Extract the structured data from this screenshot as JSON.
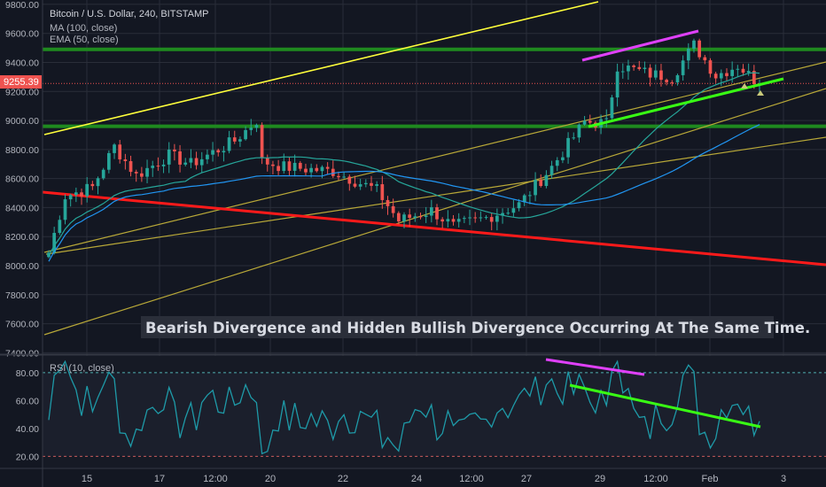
{
  "legend": {
    "symbol": "Bitcoin / U.S. Dollar, 240, BITSTAMP",
    "line2": "MA (100, close)",
    "line3": "EMA (50, close)"
  },
  "price_badge": "9255.39",
  "annotation": "Bearish Divergence and Hidden Bullish Divergence Occurring At The Same Time.",
  "rsi_label": "RSI (10, close)",
  "colors": {
    "background": "#131722",
    "grid": "#2a2e39",
    "bull": "#26a69a",
    "bear": "#ef5350",
    "ma": "#2196f3",
    "ema": "#26a69a",
    "channel": "#b8a838",
    "upper_line": "#ffff3b",
    "resistance": "#ff1a1a",
    "hzone": "#1f8a1f",
    "magenta": "#e040fb",
    "lime": "#39ff14",
    "rsi": "#1e9aa8",
    "text": "#b2b5be"
  },
  "chart_data": [
    {
      "type": "candlestick",
      "title": "Bitcoin / U.S. Dollar, 240, BITSTAMP",
      "x_ticks": [
        "15",
        "17",
        "12:00",
        "20",
        "22",
        "24",
        "12:00",
        "27",
        "29",
        "12:00",
        "Feb",
        "3"
      ],
      "y_ticks": [
        7400,
        7600,
        7800,
        8000,
        8200,
        8400,
        8600,
        8800,
        9000,
        9200,
        9400,
        9600,
        9800
      ],
      "ylim": [
        7390,
        9830
      ],
      "last_price": 9255.39,
      "horizontal_levels": [
        9490,
        8960
      ],
      "series_names": [
        "MA (100, close)",
        "EMA (50, close)"
      ],
      "anchors": [
        {
          "i": 0,
          "p": 8090
        },
        {
          "i": 3,
          "p": 8480
        },
        {
          "i": 8,
          "p": 8540
        },
        {
          "i": 12,
          "p": 8820
        },
        {
          "i": 16,
          "p": 8620
        },
        {
          "i": 22,
          "p": 8760
        },
        {
          "i": 26,
          "p": 8700
        },
        {
          "i": 34,
          "p": 8860
        },
        {
          "i": 38,
          "p": 9000
        },
        {
          "i": 39,
          "p": 8720
        },
        {
          "i": 43,
          "p": 8680
        },
        {
          "i": 52,
          "p": 8650
        },
        {
          "i": 60,
          "p": 8520
        },
        {
          "i": 64,
          "p": 8310
        },
        {
          "i": 70,
          "p": 8380
        },
        {
          "i": 74,
          "p": 8270
        },
        {
          "i": 80,
          "p": 8330
        },
        {
          "i": 86,
          "p": 8420
        },
        {
          "i": 92,
          "p": 8680
        },
        {
          "i": 98,
          "p": 8990
        },
        {
          "i": 102,
          "p": 8980
        },
        {
          "i": 104,
          "p": 9380
        },
        {
          "i": 110,
          "p": 9320
        },
        {
          "i": 114,
          "p": 9300
        },
        {
          "i": 118,
          "p": 9520
        },
        {
          "i": 122,
          "p": 9310
        },
        {
          "i": 126,
          "p": 9380
        },
        {
          "i": 130,
          "p": 9250
        }
      ]
    },
    {
      "type": "line",
      "title": "RSI (10, close)",
      "y_ticks": [
        20,
        40,
        60,
        80
      ],
      "ylim": [
        12,
        92
      ],
      "overbought": 80,
      "oversold": 20
    }
  ]
}
